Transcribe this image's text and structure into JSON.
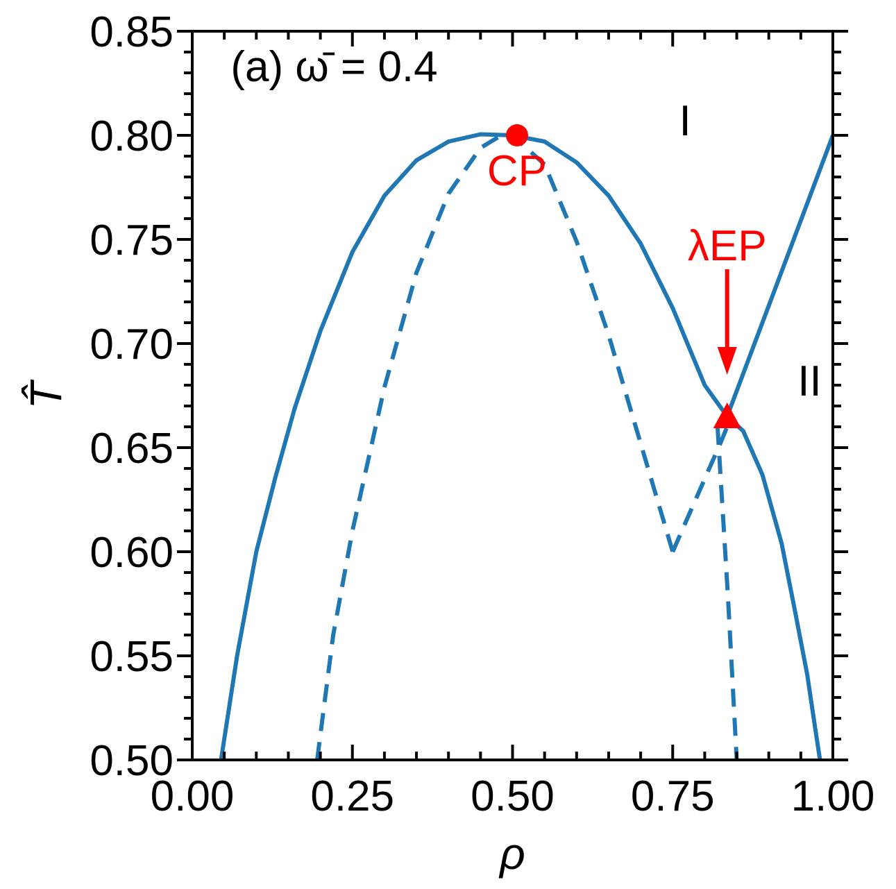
{
  "chart_data": {
    "type": "line",
    "title": "",
    "xlabel": "ρ",
    "ylabel": "T̂",
    "xlim": [
      0.0,
      1.0
    ],
    "ylim": [
      0.5,
      0.85
    ],
    "x_ticks": [
      "0.00",
      "0.25",
      "0.50",
      "0.75",
      "1.00"
    ],
    "x_tick_values": [
      0.0,
      0.25,
      0.5,
      0.75,
      1.0
    ],
    "y_ticks": [
      "0.50",
      "0.55",
      "0.60",
      "0.65",
      "0.70",
      "0.75",
      "0.80",
      "0.85"
    ],
    "y_tick_values": [
      0.5,
      0.55,
      0.6,
      0.65,
      0.7,
      0.75,
      0.8,
      0.85
    ],
    "grid": false,
    "line_color": "#1f77b4",
    "annotation_color": "#ff0000",
    "series": [
      {
        "style": "solid",
        "x": [
          0.045,
          0.07,
          0.1,
          0.13,
          0.16,
          0.2,
          0.25,
          0.3,
          0.35,
          0.4,
          0.45,
          0.5,
          0.55,
          0.6,
          0.65,
          0.7,
          0.75,
          0.8,
          0.835
        ],
        "y": [
          0.5,
          0.55,
          0.6,
          0.636,
          0.669,
          0.706,
          0.744,
          0.771,
          0.788,
          0.797,
          0.8005,
          0.8,
          0.797,
          0.787,
          0.771,
          0.748,
          0.717,
          0.68,
          0.665
        ]
      },
      {
        "style": "solid",
        "x": [
          0.835,
          0.86,
          0.89,
          0.92,
          0.94,
          0.96,
          0.975,
          0.98
        ],
        "y": [
          0.665,
          0.658,
          0.637,
          0.604,
          0.573,
          0.541,
          0.51,
          0.5
        ]
      },
      {
        "style": "solid",
        "x": [
          0.835,
          1.0
        ],
        "y": [
          0.665,
          0.8
        ]
      },
      {
        "style": "dashed",
        "x": [
          0.195,
          0.22,
          0.25,
          0.3,
          0.35,
          0.4,
          0.45,
          0.48,
          0.5,
          0.55,
          0.6,
          0.65,
          0.7,
          0.75
        ],
        "y": [
          0.5,
          0.56,
          0.61,
          0.679,
          0.734,
          0.772,
          0.794,
          0.7995,
          0.8,
          0.786,
          0.749,
          0.704,
          0.652,
          0.6
        ]
      },
      {
        "style": "dashed",
        "x": [
          0.75,
          0.77,
          0.79,
          0.81,
          0.823,
          0.835
        ],
        "y": [
          0.6,
          0.614,
          0.628,
          0.642,
          0.651,
          0.66
        ]
      },
      {
        "style": "dashed",
        "x": [
          0.82,
          0.828,
          0.836,
          0.843,
          0.85
        ],
        "y": [
          0.66,
          0.62,
          0.58,
          0.54,
          0.5
        ]
      }
    ],
    "points": [
      {
        "label": "CP",
        "x": 0.507,
        "y": 0.8,
        "marker": "circle"
      },
      {
        "label": "λEP",
        "x": 0.835,
        "y": 0.665,
        "marker": "triangle"
      }
    ],
    "annotations": [
      {
        "text": "(a) ω̄ = 0.4",
        "x": 0.06,
        "y": 0.826
      },
      {
        "text": "I",
        "x": 0.76,
        "y": 0.8
      },
      {
        "text": "II",
        "x": 0.945,
        "y": 0.675
      },
      {
        "text": "CP",
        "x": 0.507,
        "y": 0.776
      },
      {
        "text": "λEP",
        "x": 0.835,
        "y": 0.74
      }
    ]
  }
}
